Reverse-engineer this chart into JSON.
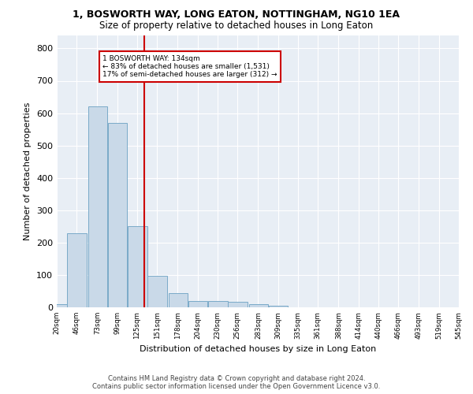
{
  "title": "1, BOSWORTH WAY, LONG EATON, NOTTINGHAM, NG10 1EA",
  "subtitle": "Size of property relative to detached houses in Long Eaton",
  "xlabel": "Distribution of detached houses by size in Long Eaton",
  "ylabel": "Number of detached properties",
  "bar_color": "#c9d9e8",
  "bar_edge_color": "#7aaac8",
  "background_color": "#e8eef5",
  "grid_color": "#ffffff",
  "annotation_line_color": "#cc0000",
  "annotation_box_color": "#cc0000",
  "property_size": 134,
  "annotation_text_line1": "1 BOSWORTH WAY: 134sqm",
  "annotation_text_line2": "← 83% of detached houses are smaller (1,531)",
  "annotation_text_line3": "17% of semi-detached houses are larger (312) →",
  "footer_line1": "Contains HM Land Registry data © Crown copyright and database right 2024.",
  "footer_line2": "Contains public sector information licensed under the Open Government Licence v3.0.",
  "bins": [
    20,
    46,
    73,
    99,
    125,
    151,
    178,
    204,
    230,
    256,
    283,
    309,
    335,
    361,
    388,
    414,
    440,
    466,
    493,
    519,
    545
  ],
  "counts": [
    10,
    228,
    620,
    570,
    252,
    97,
    43,
    20,
    20,
    18,
    10,
    5,
    0,
    0,
    0,
    0,
    0,
    0,
    0,
    0
  ],
  "ylim": [
    0,
    840
  ],
  "yticks": [
    0,
    100,
    200,
    300,
    400,
    500,
    600,
    700,
    800
  ]
}
